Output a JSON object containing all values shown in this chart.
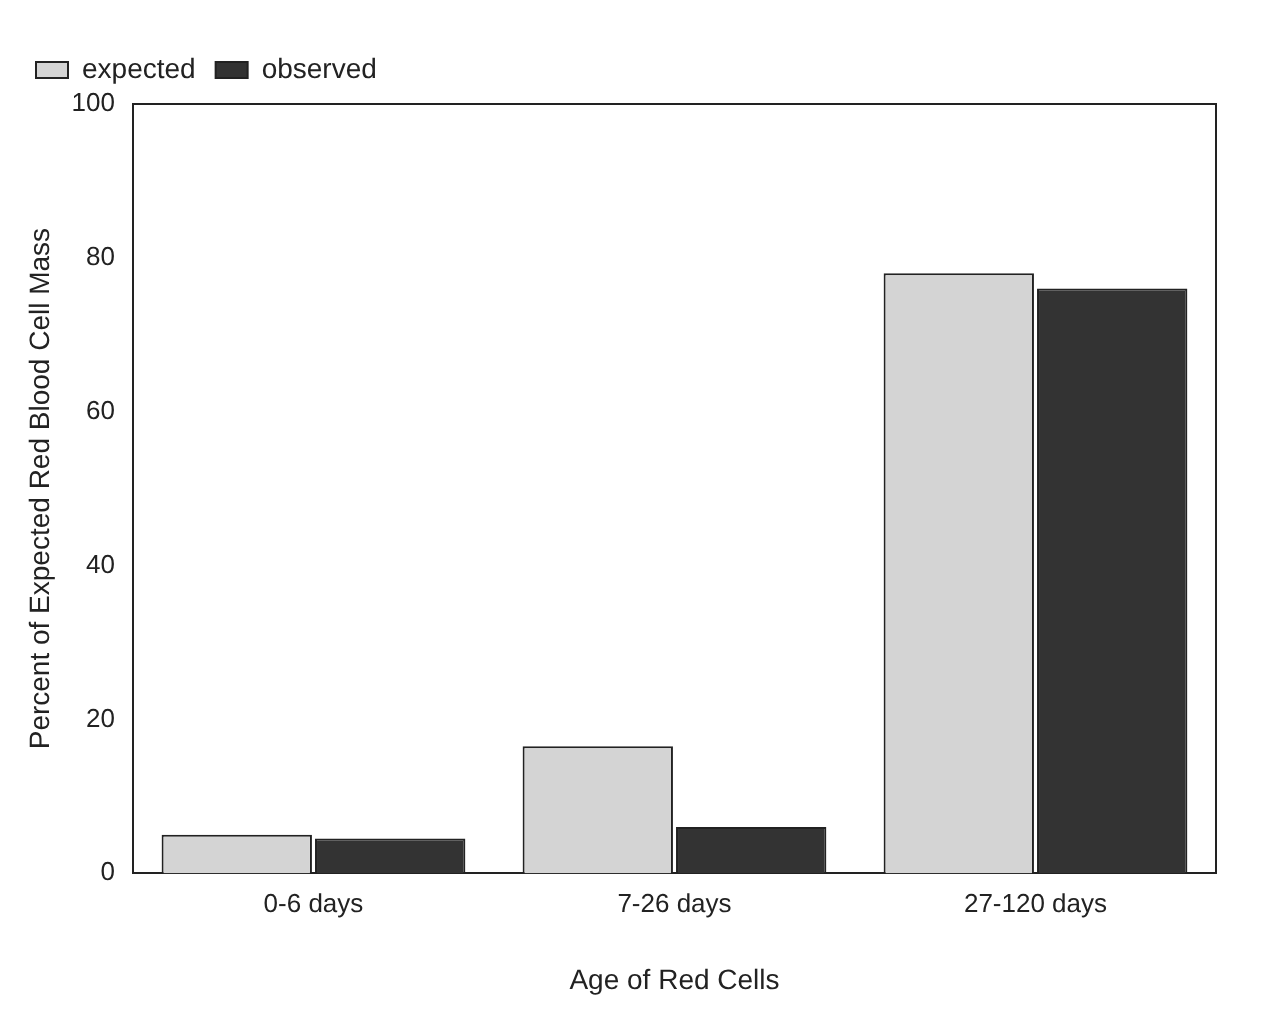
{
  "chart_data": {
    "type": "bar",
    "xlabel": "Age of Red Cells",
    "ylabel": "Percent of Expected Red Blood Cell Mass",
    "categories": [
      "0-6 days",
      "7-26 days",
      "27-120 days"
    ],
    "series": [
      {
        "name": "expected",
        "color": "#d4d4d4",
        "values": [
          5,
          16.5,
          78
        ]
      },
      {
        "name": "observed",
        "color": "#333333",
        "values": [
          4.5,
          6,
          76
        ]
      }
    ],
    "ylim": [
      0,
      100
    ],
    "yticks": [
      0,
      20,
      40,
      60,
      80,
      100
    ],
    "grid": false,
    "legend": "top left"
  }
}
